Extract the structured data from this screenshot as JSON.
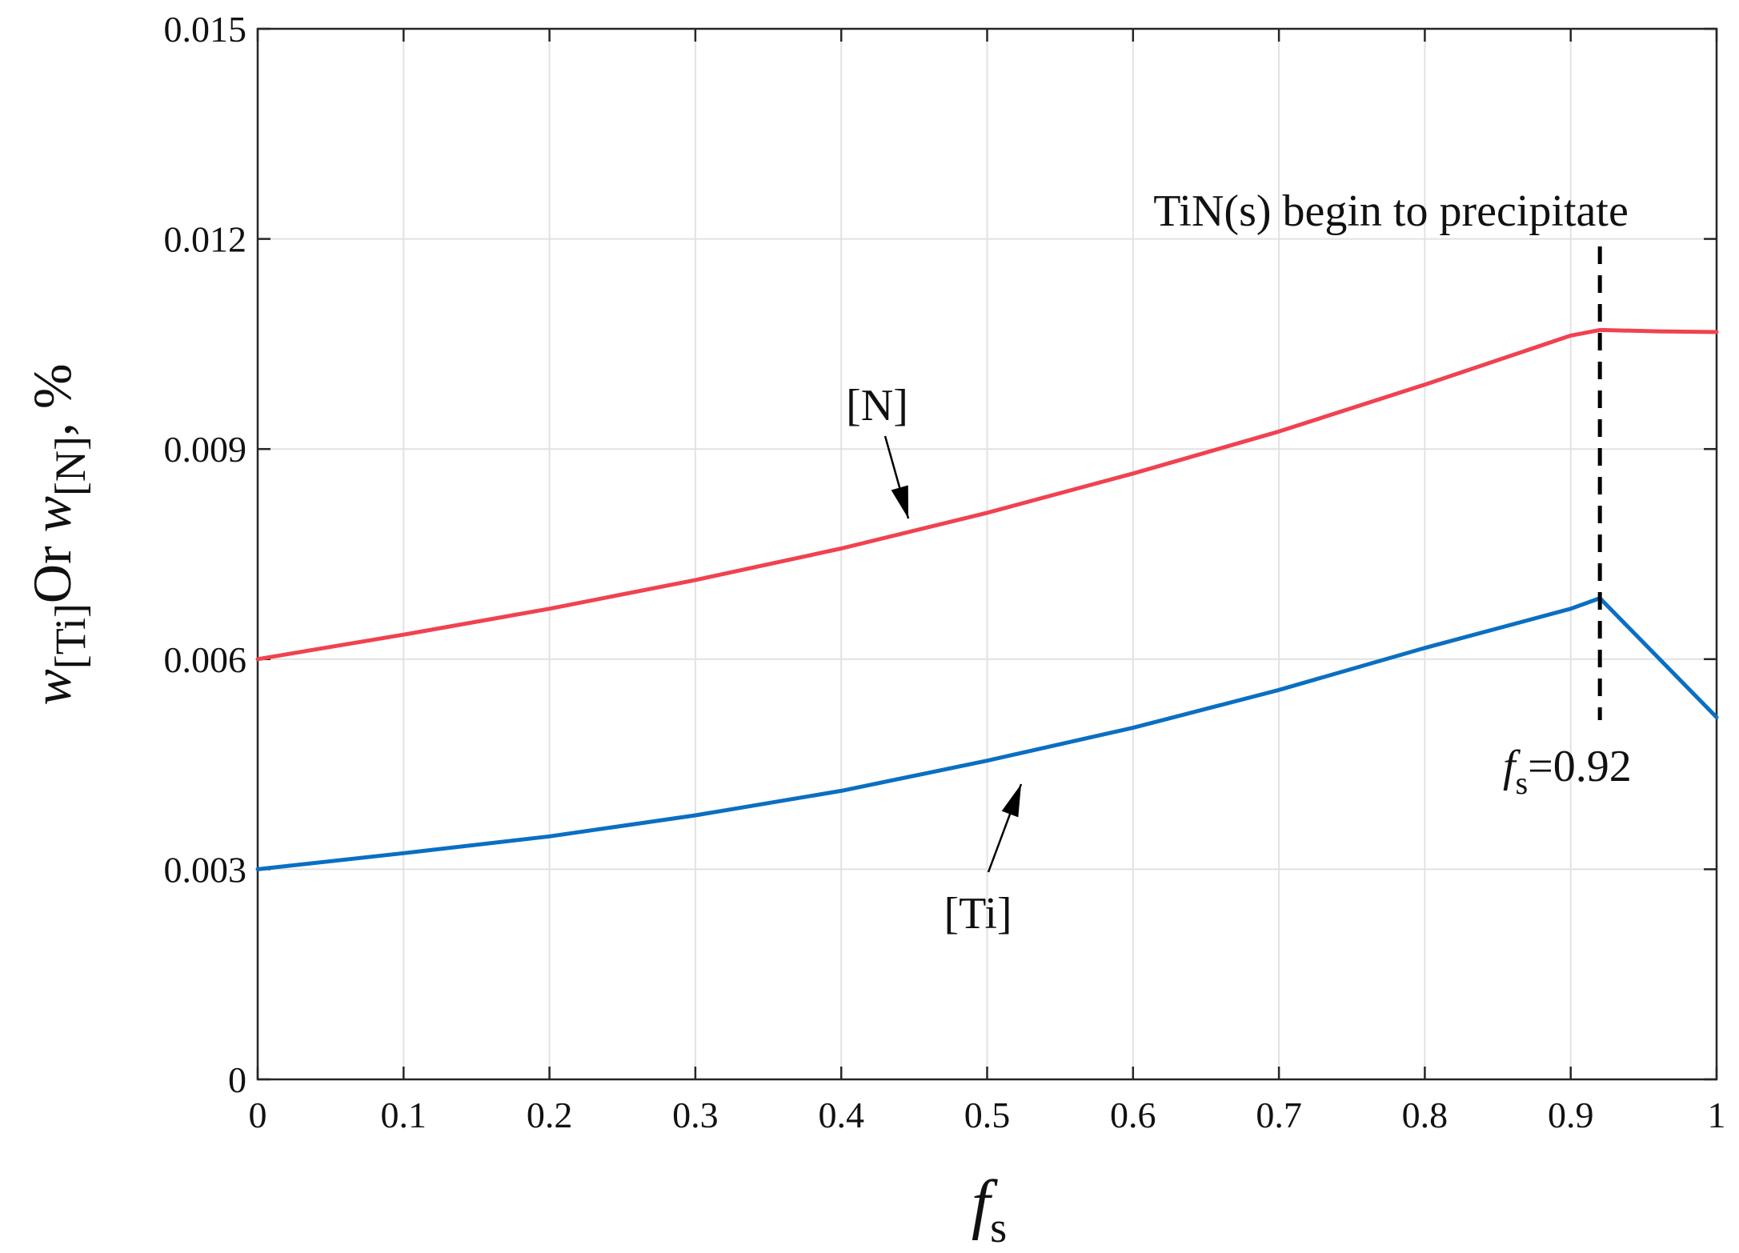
{
  "chart_data": {
    "type": "line",
    "title": "",
    "xlabel": {
      "main": "f",
      "sub": "s"
    },
    "ylabel": {
      "w1": "w",
      "sub1": "[Ti]",
      "or": "Or",
      "w2": "w",
      "sub2": "[N]",
      "unit": ", %"
    },
    "xlim": [
      0,
      1
    ],
    "ylim": [
      0,
      0.015
    ],
    "grid": true,
    "xticks": [
      0,
      0.1,
      0.2,
      0.3,
      0.4,
      0.5,
      0.6,
      0.7,
      0.8,
      0.9,
      1
    ],
    "xtick_labels": [
      "0",
      "0.1",
      "0.2",
      "0.3",
      "0.4",
      "0.5",
      "0.6",
      "0.7",
      "0.8",
      "0.9",
      "1"
    ],
    "yticks": [
      0,
      0.003,
      0.006,
      0.009,
      0.012,
      0.015
    ],
    "ytick_labels": [
      "0",
      "0.003",
      "0.006",
      "0.009",
      "0.012",
      "0.015"
    ],
    "series": [
      {
        "name": "[N]",
        "color": "#f0424f",
        "x": [
          0,
          0.1,
          0.2,
          0.3,
          0.4,
          0.5,
          0.6,
          0.7,
          0.8,
          0.9,
          0.92,
          0.96,
          1.0
        ],
        "y": [
          0.006,
          0.00635,
          0.00672,
          0.00713,
          0.00758,
          0.00809,
          0.00865,
          0.00925,
          0.00992,
          0.01062,
          0.0107,
          0.01068,
          0.01067
        ]
      },
      {
        "name": "[Ti]",
        "color": "#0a6fc2",
        "x": [
          0,
          0.1,
          0.2,
          0.3,
          0.4,
          0.5,
          0.6,
          0.7,
          0.8,
          0.9,
          0.92,
          1.0
        ],
        "y": [
          0.003,
          0.00323,
          0.00347,
          0.00377,
          0.00412,
          0.00455,
          0.00502,
          0.00556,
          0.00616,
          0.00672,
          0.00687,
          0.00517
        ]
      }
    ],
    "annotations": {
      "n_label": "[N]",
      "ti_label": "[Ti]",
      "precip_label": "TiN(s) begin to precipitate",
      "fs_value_main": "f",
      "fs_value_sub": "s",
      "fs_value_eq": "=0.92",
      "vline_x": 0.92
    }
  }
}
